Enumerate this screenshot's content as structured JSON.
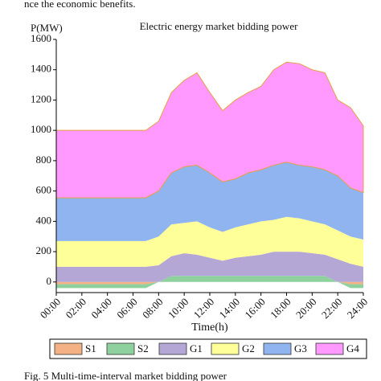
{
  "header": {
    "text": "nce the economic benefits."
  },
  "caption": {
    "text": "Fig. 5   Multi-time-interval market bidding power"
  },
  "chart_data": {
    "type": "area",
    "stacked": true,
    "title": "Electric energy market bidding power",
    "ylabel": "P(MW)",
    "xlabel": "Time(h)",
    "x": [
      0,
      1,
      2,
      3,
      4,
      5,
      6,
      7,
      8,
      9,
      10,
      11,
      12,
      13,
      14,
      15,
      16,
      17,
      18,
      19,
      20,
      21,
      22,
      23,
      24
    ],
    "xlim": [
      0,
      24
    ],
    "xticks": [
      {
        "value": 0,
        "label": "00:00"
      },
      {
        "value": 2,
        "label": "02:00"
      },
      {
        "value": 4,
        "label": "04:00"
      },
      {
        "value": 6,
        "label": "06:00"
      },
      {
        "value": 8,
        "label": "08:00"
      },
      {
        "value": 10,
        "label": "10:00"
      },
      {
        "value": 12,
        "label": "12:00"
      },
      {
        "value": 14,
        "label": "14:00"
      },
      {
        "value": 16,
        "label": "16:00"
      },
      {
        "value": 18,
        "label": "18:00"
      },
      {
        "value": 20,
        "label": "20:00"
      },
      {
        "value": 22,
        "label": "22:00"
      },
      {
        "value": 24,
        "label": "24:00"
      }
    ],
    "ylim": [
      -70,
      1600
    ],
    "yticks": [
      0,
      200,
      400,
      600,
      800,
      1000,
      1200,
      1400,
      1600
    ],
    "series": [
      {
        "name": "S1",
        "color": "#f4b183",
        "values": [
          -15,
          -15,
          -15,
          -15,
          -15,
          -15,
          -15,
          -15,
          0,
          0,
          0,
          0,
          0,
          0,
          0,
          0,
          0,
          0,
          0,
          0,
          0,
          0,
          0,
          -15,
          -15
        ]
      },
      {
        "name": "S2",
        "color": "#8fd19e",
        "values": [
          -25,
          -25,
          -25,
          -25,
          -25,
          -25,
          -25,
          -25,
          0,
          40,
          40,
          40,
          40,
          40,
          40,
          40,
          40,
          40,
          40,
          40,
          40,
          40,
          0,
          -25,
          -25
        ]
      },
      {
        "name": "G1",
        "color": "#b4a7d6",
        "values": [
          100,
          100,
          100,
          100,
          100,
          100,
          100,
          100,
          110,
          130,
          150,
          140,
          120,
          100,
          120,
          130,
          140,
          160,
          160,
          160,
          150,
          140,
          150,
          120,
          100
        ]
      },
      {
        "name": "G2",
        "color": "#ffff99",
        "values": [
          170,
          170,
          170,
          170,
          170,
          170,
          170,
          170,
          190,
          210,
          200,
          220,
          200,
          190,
          200,
          210,
          220,
          210,
          230,
          220,
          210,
          200,
          190,
          180,
          180
        ]
      },
      {
        "name": "G3",
        "color": "#8fb4f0",
        "values": [
          285,
          285,
          285,
          285,
          285,
          285,
          285,
          285,
          300,
          340,
          370,
          370,
          360,
          330,
          320,
          340,
          340,
          360,
          360,
          350,
          360,
          360,
          360,
          320,
          310
        ]
      },
      {
        "name": "G4",
        "color": "#ff99ff",
        "values": [
          445,
          445,
          445,
          445,
          445,
          445,
          445,
          445,
          460,
          530,
          570,
          610,
          530,
          470,
          520,
          530,
          550,
          630,
          660,
          670,
          640,
          640,
          500,
          530,
          440
        ]
      }
    ]
  }
}
